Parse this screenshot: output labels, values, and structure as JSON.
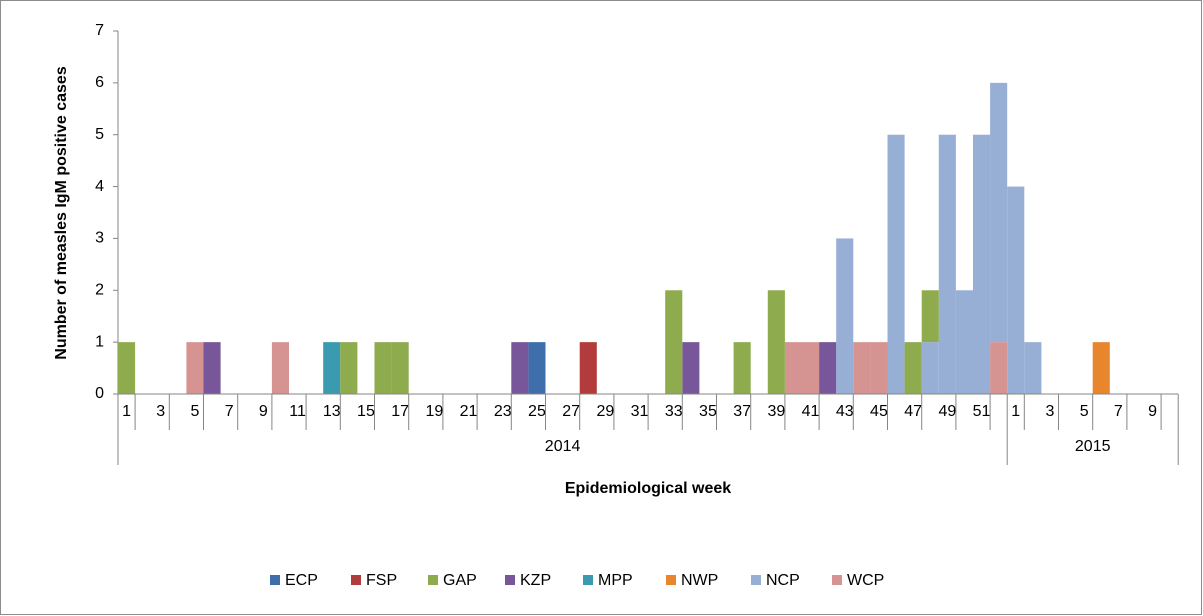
{
  "chart_data": {
    "type": "stacked_bar",
    "y_label": "Number of measles IgM positive cases",
    "x_label": "Epidemiological week",
    "category_groups": [
      {
        "label": "2014",
        "categories": [
          "1",
          null,
          "3",
          null,
          "5",
          null,
          "7",
          null,
          "9",
          null,
          "11",
          null,
          "13",
          null,
          "15",
          null,
          "17",
          null,
          "19",
          null,
          "21",
          null,
          "23",
          null,
          "25",
          null,
          "27",
          null,
          "29",
          null,
          "31",
          null,
          "33",
          null,
          "35",
          null,
          "37",
          null,
          "39",
          null,
          "41",
          null,
          "43",
          null,
          "45",
          null,
          "47",
          null,
          "49",
          null,
          "51",
          null
        ]
      },
      {
        "label": "2015",
        "categories": [
          "1",
          null,
          "3",
          null,
          "5",
          null,
          "7",
          null,
          "9",
          null
        ]
      }
    ],
    "ylim": [
      0,
      7
    ],
    "yticks": [
      0,
      1,
      2,
      3,
      4,
      5,
      6,
      7
    ],
    "series": [
      {
        "name": "ECP",
        "color": "#3f6faa",
        "values": [
          null,
          null,
          null,
          null,
          null,
          null,
          null,
          null,
          null,
          null,
          null,
          null,
          null,
          null,
          null,
          null,
          null,
          null,
          null,
          null,
          null,
          null,
          null,
          null,
          1,
          null,
          null,
          null,
          null,
          null,
          null,
          null,
          null,
          null,
          null,
          null,
          null,
          null,
          null,
          null,
          null,
          null,
          null,
          null,
          null,
          null,
          null,
          null,
          null,
          null,
          null,
          null,
          null,
          null,
          null,
          null,
          null,
          null,
          null,
          null,
          null,
          null
        ]
      },
      {
        "name": "FSP",
        "color": "#b23b3b",
        "values": [
          null,
          null,
          null,
          null,
          null,
          null,
          null,
          null,
          null,
          null,
          null,
          null,
          null,
          null,
          null,
          null,
          null,
          null,
          null,
          null,
          null,
          null,
          null,
          null,
          null,
          null,
          null,
          1,
          null,
          null,
          null,
          null,
          null,
          null,
          null,
          null,
          null,
          null,
          null,
          null,
          null,
          null,
          null,
          null,
          null,
          null,
          null,
          null,
          null,
          null,
          null,
          null,
          null,
          null,
          null,
          null,
          null,
          null,
          null,
          null,
          null,
          null
        ]
      },
      {
        "name": "GAP",
        "color": "#8eab4e",
        "values": [
          1,
          null,
          null,
          null,
          null,
          null,
          null,
          null,
          null,
          null,
          null,
          null,
          null,
          1,
          null,
          1,
          1,
          null,
          null,
          null,
          null,
          null,
          null,
          null,
          null,
          null,
          null,
          null,
          null,
          null,
          null,
          null,
          2,
          null,
          null,
          null,
          1,
          null,
          2,
          null,
          null,
          null,
          null,
          null,
          null,
          null,
          1,
          1,
          null,
          null,
          null,
          null,
          null,
          null,
          null,
          null,
          null,
          null,
          null,
          null,
          null,
          null
        ]
      },
      {
        "name": "KZP",
        "color": "#77579a",
        "values": [
          null,
          null,
          null,
          null,
          null,
          1,
          null,
          null,
          null,
          null,
          null,
          null,
          null,
          null,
          null,
          null,
          null,
          null,
          null,
          null,
          null,
          null,
          null,
          1,
          null,
          null,
          null,
          null,
          null,
          null,
          null,
          null,
          null,
          1,
          null,
          null,
          null,
          null,
          null,
          null,
          null,
          1,
          null,
          null,
          null,
          null,
          null,
          null,
          null,
          null,
          null,
          null,
          null,
          null,
          null,
          null,
          null,
          null,
          null,
          null,
          null,
          null
        ]
      },
      {
        "name": "MPP",
        "color": "#3a9bb0",
        "values": [
          null,
          null,
          null,
          null,
          null,
          null,
          null,
          null,
          null,
          null,
          null,
          null,
          1,
          null,
          null,
          null,
          null,
          null,
          null,
          null,
          null,
          null,
          null,
          null,
          null,
          null,
          null,
          null,
          null,
          null,
          null,
          null,
          null,
          null,
          null,
          null,
          null,
          null,
          null,
          null,
          null,
          null,
          null,
          null,
          null,
          null,
          null,
          null,
          null,
          null,
          null,
          null,
          null,
          null,
          null,
          null,
          null,
          null,
          null,
          null,
          null,
          null
        ]
      },
      {
        "name": "NWP",
        "color": "#e8862e",
        "values": [
          null,
          null,
          null,
          null,
          null,
          null,
          null,
          null,
          null,
          null,
          null,
          null,
          null,
          null,
          null,
          null,
          null,
          null,
          null,
          null,
          null,
          null,
          null,
          null,
          null,
          null,
          null,
          null,
          null,
          null,
          null,
          null,
          null,
          null,
          null,
          null,
          null,
          null,
          null,
          null,
          null,
          null,
          null,
          null,
          null,
          null,
          null,
          null,
          null,
          null,
          null,
          null,
          null,
          null,
          null,
          null,
          null,
          1,
          null,
          null,
          null,
          null
        ]
      },
      {
        "name": "NCP",
        "color": "#97afd5",
        "values": [
          null,
          null,
          null,
          null,
          null,
          null,
          null,
          null,
          null,
          null,
          null,
          null,
          null,
          null,
          null,
          null,
          null,
          null,
          null,
          null,
          null,
          null,
          null,
          null,
          null,
          null,
          null,
          null,
          null,
          null,
          null,
          null,
          null,
          null,
          null,
          null,
          null,
          null,
          null,
          null,
          null,
          null,
          3,
          null,
          null,
          5,
          null,
          1,
          5,
          2,
          5,
          5,
          4,
          1,
          null,
          null,
          null,
          null,
          null,
          null,
          null,
          null
        ]
      },
      {
        "name": "WCP",
        "color": "#d59391",
        "values": [
          null,
          null,
          null,
          null,
          1,
          null,
          null,
          null,
          null,
          1,
          null,
          null,
          null,
          null,
          null,
          null,
          null,
          null,
          null,
          null,
          null,
          null,
          null,
          null,
          null,
          null,
          null,
          null,
          null,
          null,
          null,
          null,
          null,
          null,
          null,
          null,
          null,
          null,
          null,
          1,
          1,
          null,
          null,
          1,
          1,
          null,
          null,
          null,
          null,
          null,
          null,
          1,
          null,
          null,
          null,
          null,
          null,
          null,
          null,
          null,
          null,
          null
        ]
      }
    ]
  }
}
